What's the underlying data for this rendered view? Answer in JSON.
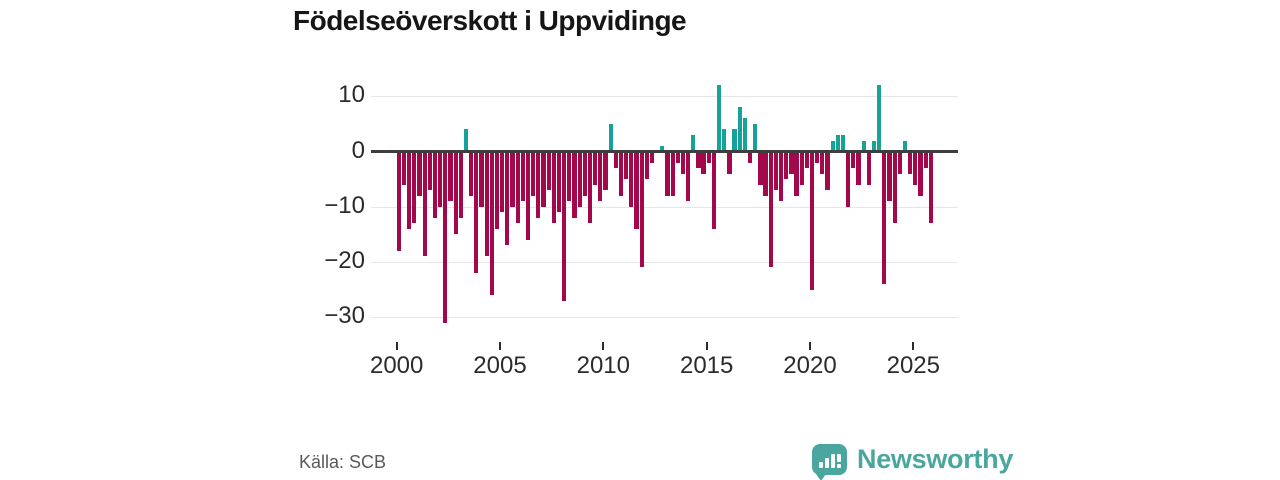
{
  "title": "Födelseöverskott i Uppvidinge",
  "source": {
    "label": "Källa: SCB"
  },
  "logo": {
    "name": "Newsworthy",
    "color": "#4aa7a0"
  },
  "colors": {
    "positive_bar": "#14a29b",
    "negative_bar": "#a3084a",
    "zero_line": "#3d3d3d",
    "gridline": "#e7e7e7",
    "text": "#2b2b2b"
  },
  "chart_data": {
    "type": "bar",
    "title": "Födelseöverskott i Uppvidinge",
    "x_unit": "quarter",
    "start_year": 2000,
    "end_year": 2025,
    "xlabel": "",
    "ylabel": "",
    "ylim": [
      -33,
      13
    ],
    "grid": true,
    "yticks": {
      "values": [
        10,
        0,
        -10,
        -20,
        -30
      ],
      "labels": [
        "10",
        "0",
        "−10",
        "−20",
        "−30"
      ]
    },
    "xticks": {
      "values": [
        2000,
        2005,
        2010,
        2015,
        2020,
        2025
      ],
      "labels": [
        "2000",
        "2005",
        "2010",
        "2015",
        "2020",
        "2025"
      ]
    },
    "values": [
      -18,
      -6,
      -14,
      -13,
      -8,
      -19,
      -7,
      -12,
      -10,
      -31,
      -9,
      -15,
      -12,
      4,
      -8,
      -22,
      -10,
      -19,
      -26,
      -14,
      -11,
      -17,
      -10,
      -13,
      -9,
      -16,
      -8,
      -12,
      -10,
      -7,
      -13,
      -11,
      -27,
      -9,
      -12,
      -10,
      -8,
      -13,
      -6,
      -9,
      -7,
      5,
      -3,
      -8,
      -5,
      -10,
      -14,
      -21,
      -5,
      -2,
      0,
      1,
      -8,
      -8,
      -2,
      -4,
      -9,
      3,
      -3,
      -4,
      -2,
      -14,
      12,
      4,
      -4,
      4,
      8,
      6,
      -2,
      5,
      -6,
      -8,
      -21,
      -7,
      -9,
      -5,
      -4,
      -8,
      -6,
      -3,
      -25,
      -2,
      -4,
      -7,
      2,
      3,
      3,
      -10,
      -3,
      -6,
      2,
      -6,
      2,
      12,
      -24,
      -9,
      -13,
      -4,
      2,
      -4,
      -6,
      -8,
      -3,
      -13
    ]
  },
  "layout_note": ""
}
